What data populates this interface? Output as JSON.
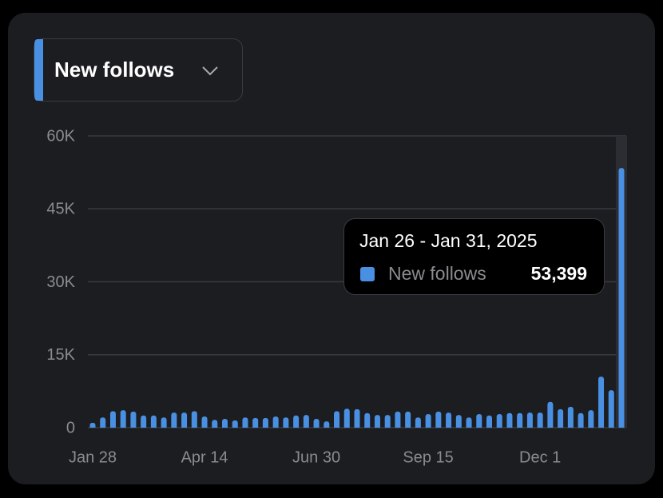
{
  "selector": "New follows",
  "chart_data": {
    "type": "bar",
    "categories": [
      "Jan 28",
      null,
      null,
      null,
      null,
      null,
      null,
      null,
      null,
      null,
      null,
      "Apr 14",
      null,
      null,
      null,
      null,
      null,
      null,
      null,
      null,
      null,
      null,
      "Jun 30",
      null,
      null,
      null,
      null,
      null,
      null,
      null,
      null,
      null,
      null,
      "Sep 15",
      null,
      null,
      null,
      null,
      null,
      null,
      null,
      null,
      null,
      null,
      "Dec 1",
      null,
      null,
      null,
      null,
      null,
      null,
      null,
      null
    ],
    "series": [
      {
        "name": "New follows",
        "color": "#4a90e2",
        "values": [
          1000,
          2100,
          3400,
          3600,
          3300,
          2500,
          2500,
          2100,
          3100,
          3100,
          3400,
          2300,
          1600,
          1800,
          1500,
          2100,
          2000,
          2000,
          2300,
          2100,
          2500,
          2600,
          1800,
          1300,
          3400,
          3900,
          3800,
          3000,
          2600,
          2600,
          3300,
          3300,
          2100,
          2800,
          3300,
          3100,
          2600,
          2100,
          2800,
          2500,
          2800,
          3000,
          3000,
          3100,
          3100,
          5300,
          3800,
          4300,
          3000,
          3600,
          10500,
          7700,
          53399
        ],
        "value_labels": [
          null,
          null,
          null,
          null,
          null,
          null,
          null,
          null,
          null,
          null,
          null,
          null,
          null,
          null,
          null,
          null,
          null,
          null,
          null,
          null,
          null,
          null,
          null,
          null,
          null,
          null,
          null,
          null,
          null,
          null,
          null,
          null,
          null,
          null,
          null,
          null,
          null,
          null,
          null,
          null,
          null,
          null,
          null,
          null,
          null,
          null,
          null,
          null,
          null,
          null,
          null,
          null,
          "53,399"
        ]
      }
    ],
    "tooltip_title": "Jan 26 - Jan 31, 2025",
    "ylim": [
      0,
      60000
    ],
    "yticks": [
      0,
      {
        "value": 15000,
        "label": "15K"
      },
      {
        "value": 30000,
        "label": "30K"
      },
      {
        "value": 45000,
        "label": "45K"
      },
      {
        "value": 60000,
        "label": "60K"
      }
    ],
    "grid": true
  }
}
